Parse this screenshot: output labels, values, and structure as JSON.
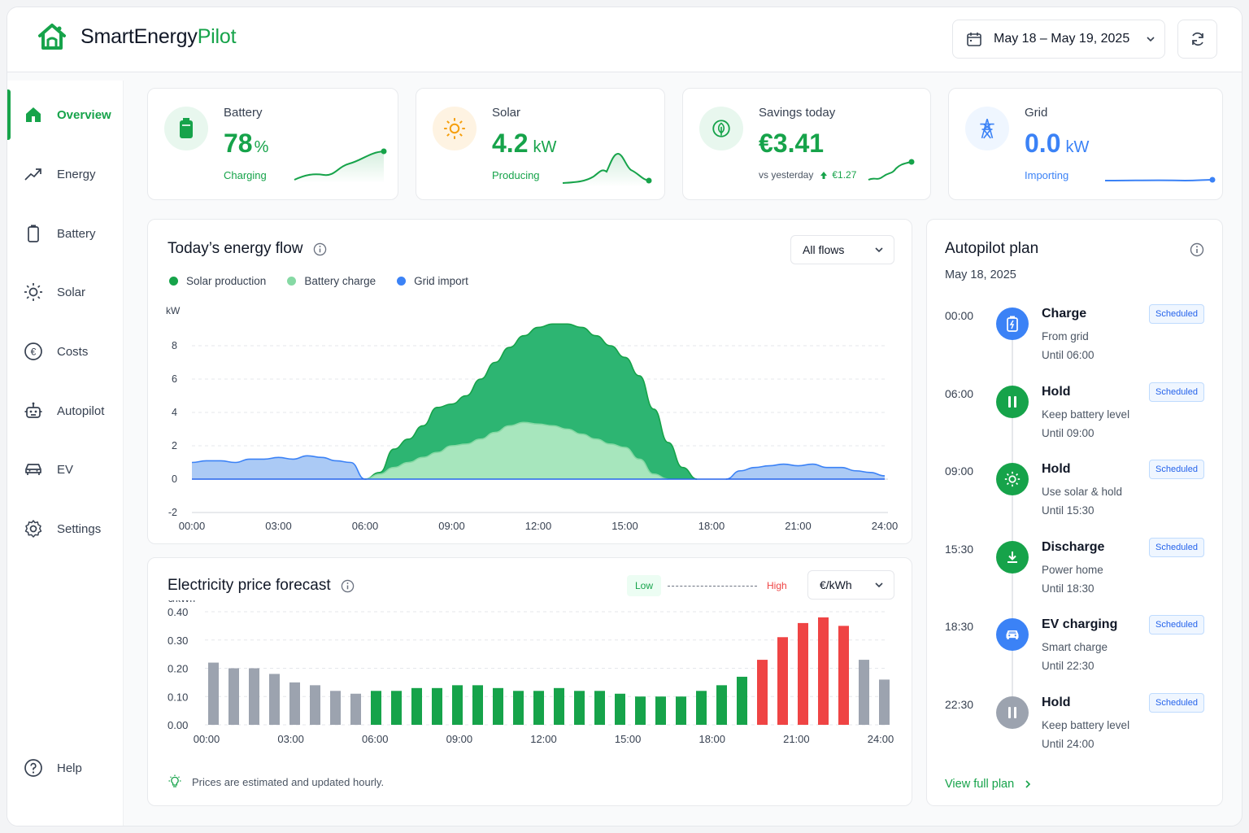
{
  "app": {
    "name_part1": "SmartEnergy",
    "name_part2": "Pilot"
  },
  "header": {
    "date_range": "May 18 – May 19, 2025"
  },
  "sidebar": {
    "items": [
      {
        "label": "Overview",
        "icon": "home-icon",
        "active": true
      },
      {
        "label": "Energy",
        "icon": "trend-icon"
      },
      {
        "label": "Battery",
        "icon": "battery-icon"
      },
      {
        "label": "Solar",
        "icon": "sun-icon"
      },
      {
        "label": "Costs",
        "icon": "euro-icon"
      },
      {
        "label": "Autopilot",
        "icon": "robot-icon"
      },
      {
        "label": "EV",
        "icon": "car-icon"
      },
      {
        "label": "Settings",
        "icon": "gear-icon"
      }
    ],
    "help": "Help"
  },
  "kpis": {
    "battery": {
      "label": "Battery",
      "value": "78",
      "unit": "%",
      "status": "Charging"
    },
    "solar": {
      "label": "Solar",
      "value": "4.2",
      "unit": "kW",
      "status": "Producing"
    },
    "savings": {
      "label": "Savings today",
      "value": "€3.41",
      "vs": "vs yesterday",
      "delta": "€1.27"
    },
    "grid": {
      "label": "Grid",
      "value": "0.0",
      "unit": "kW",
      "status": "Importing"
    }
  },
  "colors": {
    "green": "#16a34a",
    "light_green": "#86efac",
    "blue": "#3b82f6",
    "red": "#ef4444",
    "gray": "#9ca3af"
  },
  "energy_flow": {
    "title": "Today’s energy flow",
    "filter": "All flows",
    "legend": [
      "Solar production",
      "Battery charge",
      "Grid import"
    ]
  },
  "price_forecast": {
    "title": "Electricity price forecast",
    "low": "Low",
    "high": "High",
    "unit_select": "€/kWh",
    "note": "Prices are estimated and updated hourly."
  },
  "chart_data": [
    {
      "type": "area",
      "ylabel": "kW",
      "ylim": [
        -2,
        10
      ],
      "yticks": [
        8,
        6,
        4,
        2,
        0,
        -2
      ],
      "xticks": [
        "00:00",
        "03:00",
        "06:00",
        "09:00",
        "12:00",
        "15:00",
        "18:00",
        "21:00",
        "24:00"
      ],
      "x": [
        0,
        0.5,
        1,
        1.5,
        2,
        2.5,
        3,
        3.5,
        4,
        4.5,
        5,
        5.5,
        6,
        6.5,
        7,
        7.5,
        8,
        8.5,
        9,
        9.5,
        10,
        10.5,
        11,
        11.5,
        12,
        12.5,
        13,
        13.5,
        14,
        14.5,
        15,
        15.5,
        16,
        16.5,
        17,
        17.5,
        18,
        18.5,
        19,
        19.5,
        20,
        20.5,
        21,
        21.5,
        22,
        22.5,
        23,
        23.5,
        24
      ],
      "series": [
        {
          "name": "Solar production",
          "values": [
            0,
            0,
            0,
            0,
            0,
            0,
            0,
            0,
            0,
            0,
            0,
            0,
            0,
            0.4,
            1.8,
            2.4,
            3.2,
            4.3,
            4.5,
            5.0,
            6.0,
            7.0,
            7.9,
            8.6,
            9.1,
            9.3,
            9.3,
            9.1,
            8.6,
            8.0,
            7.3,
            6.2,
            4.2,
            2.2,
            0.7,
            0,
            0,
            0,
            0,
            0,
            0,
            0,
            0,
            0,
            0,
            0,
            0,
            0,
            0
          ]
        },
        {
          "name": "Battery charge",
          "values": [
            0,
            0,
            0,
            0,
            0,
            0,
            0,
            0,
            0,
            0,
            0,
            0,
            0,
            0.3,
            0.7,
            1.0,
            1.3,
            1.6,
            2.0,
            2.1,
            2.4,
            2.8,
            3.2,
            3.4,
            3.3,
            3.2,
            3.0,
            2.7,
            2.4,
            2.1,
            1.9,
            1.2,
            0.3,
            0,
            0,
            0,
            0,
            0,
            0,
            0,
            0,
            0,
            0,
            0,
            0,
            0,
            0,
            0,
            0
          ]
        },
        {
          "name": "Grid import",
          "values": [
            1.0,
            1.1,
            1.1,
            1.0,
            1.2,
            1.2,
            1.3,
            1.2,
            1.4,
            1.3,
            1.1,
            1.0,
            0,
            0,
            0,
            0,
            0,
            0,
            0,
            0,
            0,
            0,
            0,
            0,
            0,
            0,
            0,
            0,
            0,
            0,
            0,
            0,
            0,
            0,
            0,
            0,
            0,
            0,
            0.5,
            0.7,
            0.8,
            0.9,
            0.8,
            0.9,
            0.7,
            0.7,
            0.5,
            0.4,
            0.2
          ]
        }
      ]
    },
    {
      "type": "bar",
      "ylabel": "€/kWh",
      "ylim": [
        0,
        0.4
      ],
      "yticks": [
        "0.40",
        "0.30",
        "0.20",
        "0.10",
        "0.00"
      ],
      "xticks": [
        "00:00",
        "03:00",
        "06:00",
        "09:00",
        "12:00",
        "15:00",
        "18:00",
        "21:00",
        "24:00"
      ],
      "values": [
        0.22,
        0.2,
        0.2,
        0.18,
        0.15,
        0.14,
        0.12,
        0.11,
        0.12,
        0.12,
        0.13,
        0.13,
        0.14,
        0.14,
        0.13,
        0.12,
        0.12,
        0.13,
        0.12,
        0.12,
        0.11,
        0.1,
        0.1,
        0.1,
        0.12,
        0.14,
        0.17,
        0.23,
        0.31,
        0.36,
        0.38,
        0.35,
        0.23,
        0.16
      ],
      "levels": [
        "gray",
        "gray",
        "gray",
        "gray",
        "gray",
        "gray",
        "gray",
        "gray",
        "green",
        "green",
        "green",
        "green",
        "green",
        "green",
        "green",
        "green",
        "green",
        "green",
        "green",
        "green",
        "green",
        "green",
        "green",
        "green",
        "green",
        "green",
        "green",
        "red",
        "red",
        "red",
        "red",
        "red",
        "gray",
        "gray"
      ]
    }
  ],
  "autopilot": {
    "title": "Autopilot plan",
    "date": "May 18, 2025",
    "items": [
      {
        "time": "00:00",
        "title": "Charge",
        "sub1": "From grid",
        "sub2": "Until 06:00",
        "badge": "Scheduled",
        "icon": "battery-charge-icon",
        "color": "#3b82f6"
      },
      {
        "time": "06:00",
        "title": "Hold",
        "sub1": "Keep battery level",
        "sub2": "Until 09:00",
        "badge": "Scheduled",
        "icon": "pause-icon",
        "color": "#16a34a"
      },
      {
        "time": "09:00",
        "title": "Hold",
        "sub1": "Use solar & hold",
        "sub2": "Until 15:30",
        "badge": "Scheduled",
        "icon": "sun-icon",
        "color": "#16a34a"
      },
      {
        "time": "15:30",
        "title": "Discharge",
        "sub1": "Power home",
        "sub2": "Until 18:30",
        "badge": "Scheduled",
        "icon": "download-icon",
        "color": "#16a34a"
      },
      {
        "time": "18:30",
        "title": "EV charging",
        "sub1": "Smart charge",
        "sub2": "Until 22:30",
        "badge": "Scheduled",
        "icon": "car-icon",
        "color": "#3b82f6"
      },
      {
        "time": "22:30",
        "title": "Hold",
        "sub1": "Keep battery level",
        "sub2": "Until 24:00",
        "badge": "Scheduled",
        "icon": "pause-icon",
        "color": "#9ca3af"
      }
    ],
    "link": "View full plan"
  }
}
